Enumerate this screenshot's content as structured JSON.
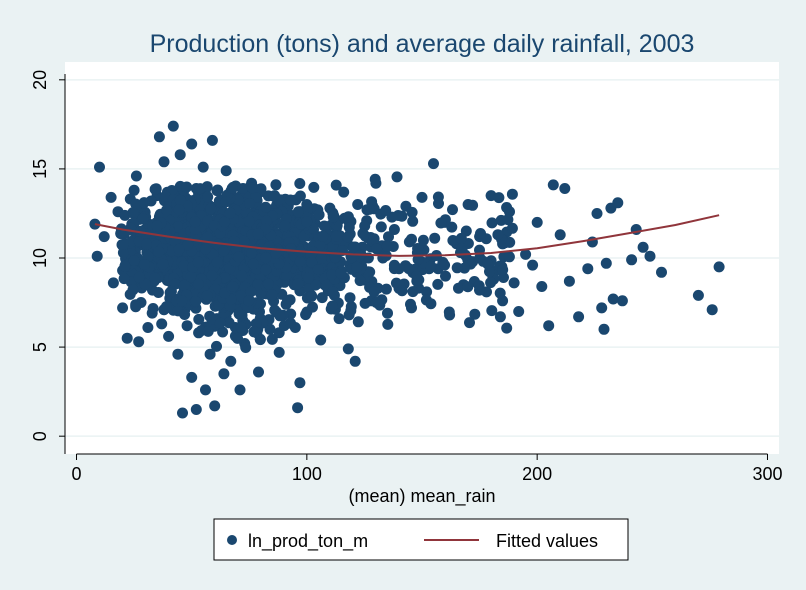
{
  "chart_data": {
    "type": "scatter",
    "title": "Production (tons) and average daily rainfall, 2003",
    "xlabel": "(mean) mean_rain",
    "ylabel": "",
    "xlim": [
      -5,
      305
    ],
    "ylim": [
      -1,
      21
    ],
    "xticks": [
      0,
      100,
      200,
      300
    ],
    "yticks": [
      0,
      5,
      10,
      15,
      20
    ],
    "grid": "horizontal",
    "legend_position": "bottom",
    "colors": {
      "outer_background": "#eaf2f3",
      "plot_background": "#ffffff",
      "points": "#1a476f",
      "fit_line": "#90353b",
      "grid": "#eaf2f3",
      "text": "#1a476f"
    },
    "series": [
      {
        "name": "ln_prod_ton_m",
        "kind": "scatter",
        "points": [
          [
            8,
            11.9
          ],
          [
            9,
            10.1
          ],
          [
            10,
            15.1
          ],
          [
            12,
            11.2
          ],
          [
            15,
            13.4
          ],
          [
            16,
            8.6
          ],
          [
            18,
            12.6
          ],
          [
            20,
            9.3
          ],
          [
            20,
            7.2
          ],
          [
            22,
            5.5
          ],
          [
            24,
            11.9
          ],
          [
            25,
            13.8
          ],
          [
            26,
            14.6
          ],
          [
            27,
            5.3
          ],
          [
            28,
            7.5
          ],
          [
            30,
            9.4
          ],
          [
            30,
            12.3
          ],
          [
            31,
            6.1
          ],
          [
            33,
            8.2
          ],
          [
            35,
            13.5
          ],
          [
            35,
            10.6
          ],
          [
            36,
            16.8
          ],
          [
            37,
            6.3
          ],
          [
            38,
            15.4
          ],
          [
            38,
            7.1
          ],
          [
            39,
            12.5
          ],
          [
            40,
            8.9
          ],
          [
            40,
            5.6
          ],
          [
            41,
            13.7
          ],
          [
            42,
            17.4
          ],
          [
            43,
            9.6
          ],
          [
            44,
            4.6
          ],
          [
            45,
            15.8
          ],
          [
            45,
            11.0
          ],
          [
            46,
            1.3
          ],
          [
            47,
            7.1
          ],
          [
            48,
            12.2
          ],
          [
            48,
            6.2
          ],
          [
            49,
            9.4
          ],
          [
            50,
            16.4
          ],
          [
            50,
            3.3
          ],
          [
            51,
            8.3
          ],
          [
            52,
            1.5
          ],
          [
            52,
            13.9
          ],
          [
            53,
            5.8
          ],
          [
            54,
            10.5
          ],
          [
            55,
            15.1
          ],
          [
            55,
            7.8
          ],
          [
            56,
            2.6
          ],
          [
            57,
            12.7
          ],
          [
            58,
            4.6
          ],
          [
            58,
            9.1
          ],
          [
            59,
            16.6
          ],
          [
            60,
            1.7
          ],
          [
            60,
            11.4
          ],
          [
            61,
            6.6
          ],
          [
            62,
            13.2
          ],
          [
            63,
            8.5
          ],
          [
            64,
            3.5
          ],
          [
            65,
            14.9
          ],
          [
            66,
            10.0
          ],
          [
            67,
            4.2
          ],
          [
            68,
            12.1
          ],
          [
            69,
            6.1
          ],
          [
            70,
            8.9
          ],
          [
            71,
            2.6
          ],
          [
            72,
            13.6
          ],
          [
            73,
            5.2
          ],
          [
            75,
            10.7
          ],
          [
            76,
            14.2
          ],
          [
            78,
            7.3
          ],
          [
            79,
            3.6
          ],
          [
            80,
            11.3
          ],
          [
            82,
            12.7
          ],
          [
            84,
            6.0
          ],
          [
            85,
            9.8
          ],
          [
            86,
            13.5
          ],
          [
            88,
            4.7
          ],
          [
            90,
            10.8
          ],
          [
            91,
            7.4
          ],
          [
            93,
            12.4
          ],
          [
            95,
            6.1
          ],
          [
            96,
            1.6
          ],
          [
            97,
            3.0
          ],
          [
            98,
            9.1
          ],
          [
            100,
            13.0
          ],
          [
            102,
            7.9
          ],
          [
            104,
            11.2
          ],
          [
            106,
            5.4
          ],
          [
            108,
            10.5
          ],
          [
            110,
            12.8
          ],
          [
            112,
            8.8
          ],
          [
            114,
            6.6
          ],
          [
            116,
            13.7
          ],
          [
            118,
            4.9
          ],
          [
            120,
            10.1
          ],
          [
            121,
            4.2
          ],
          [
            124,
            9.3
          ],
          [
            126,
            12.1
          ],
          [
            128,
            7.6
          ],
          [
            130,
            14.2
          ],
          [
            133,
            10.0
          ],
          [
            135,
            6.9
          ],
          [
            138,
            11.6
          ],
          [
            140,
            8.3
          ],
          [
            143,
            12.9
          ],
          [
            145,
            7.4
          ],
          [
            148,
            10.3
          ],
          [
            150,
            13.4
          ],
          [
            152,
            8.1
          ],
          [
            155,
            15.3
          ],
          [
            157,
            9.4
          ],
          [
            160,
            12.0
          ],
          [
            162,
            6.8
          ],
          [
            165,
            10.8
          ],
          [
            168,
            8.5
          ],
          [
            170,
            13.0
          ],
          [
            172,
            9.8
          ],
          [
            175,
            11.2
          ],
          [
            178,
            8.1
          ],
          [
            180,
            13.5
          ],
          [
            182,
            9.3
          ],
          [
            185,
            7.6
          ],
          [
            188,
            12.6
          ],
          [
            190,
            8.6
          ],
          [
            192,
            7.0
          ],
          [
            195,
            10.2
          ],
          [
            198,
            9.6
          ],
          [
            200,
            12.0
          ],
          [
            202,
            8.4
          ],
          [
            205,
            6.2
          ],
          [
            207,
            14.1
          ],
          [
            210,
            11.3
          ],
          [
            212,
            13.9
          ],
          [
            214,
            8.7
          ],
          [
            218,
            6.7
          ],
          [
            222,
            9.4
          ],
          [
            224,
            10.9
          ],
          [
            226,
            12.5
          ],
          [
            228,
            7.2
          ],
          [
            229,
            6.0
          ],
          [
            230,
            9.7
          ],
          [
            232,
            12.8
          ],
          [
            233,
            7.7
          ],
          [
            235,
            13.1
          ],
          [
            237,
            7.6
          ],
          [
            241,
            9.9
          ],
          [
            243,
            11.6
          ],
          [
            246,
            10.6
          ],
          [
            249,
            10.1
          ],
          [
            254,
            9.2
          ],
          [
            270,
            7.9
          ],
          [
            276,
            7.1
          ],
          [
            279,
            9.5
          ]
        ]
      },
      {
        "name": "Fitted values",
        "kind": "line",
        "x": [
          8,
          20,
          40,
          60,
          80,
          100,
          120,
          140,
          160,
          180,
          200,
          220,
          240,
          260,
          279
        ],
        "y": [
          11.9,
          11.6,
          11.2,
          10.85,
          10.55,
          10.35,
          10.2,
          10.12,
          10.15,
          10.28,
          10.55,
          10.95,
          11.4,
          11.85,
          12.4
        ]
      }
    ],
    "legend": [
      "ln_prod_ton_m",
      "Fitted values"
    ]
  }
}
